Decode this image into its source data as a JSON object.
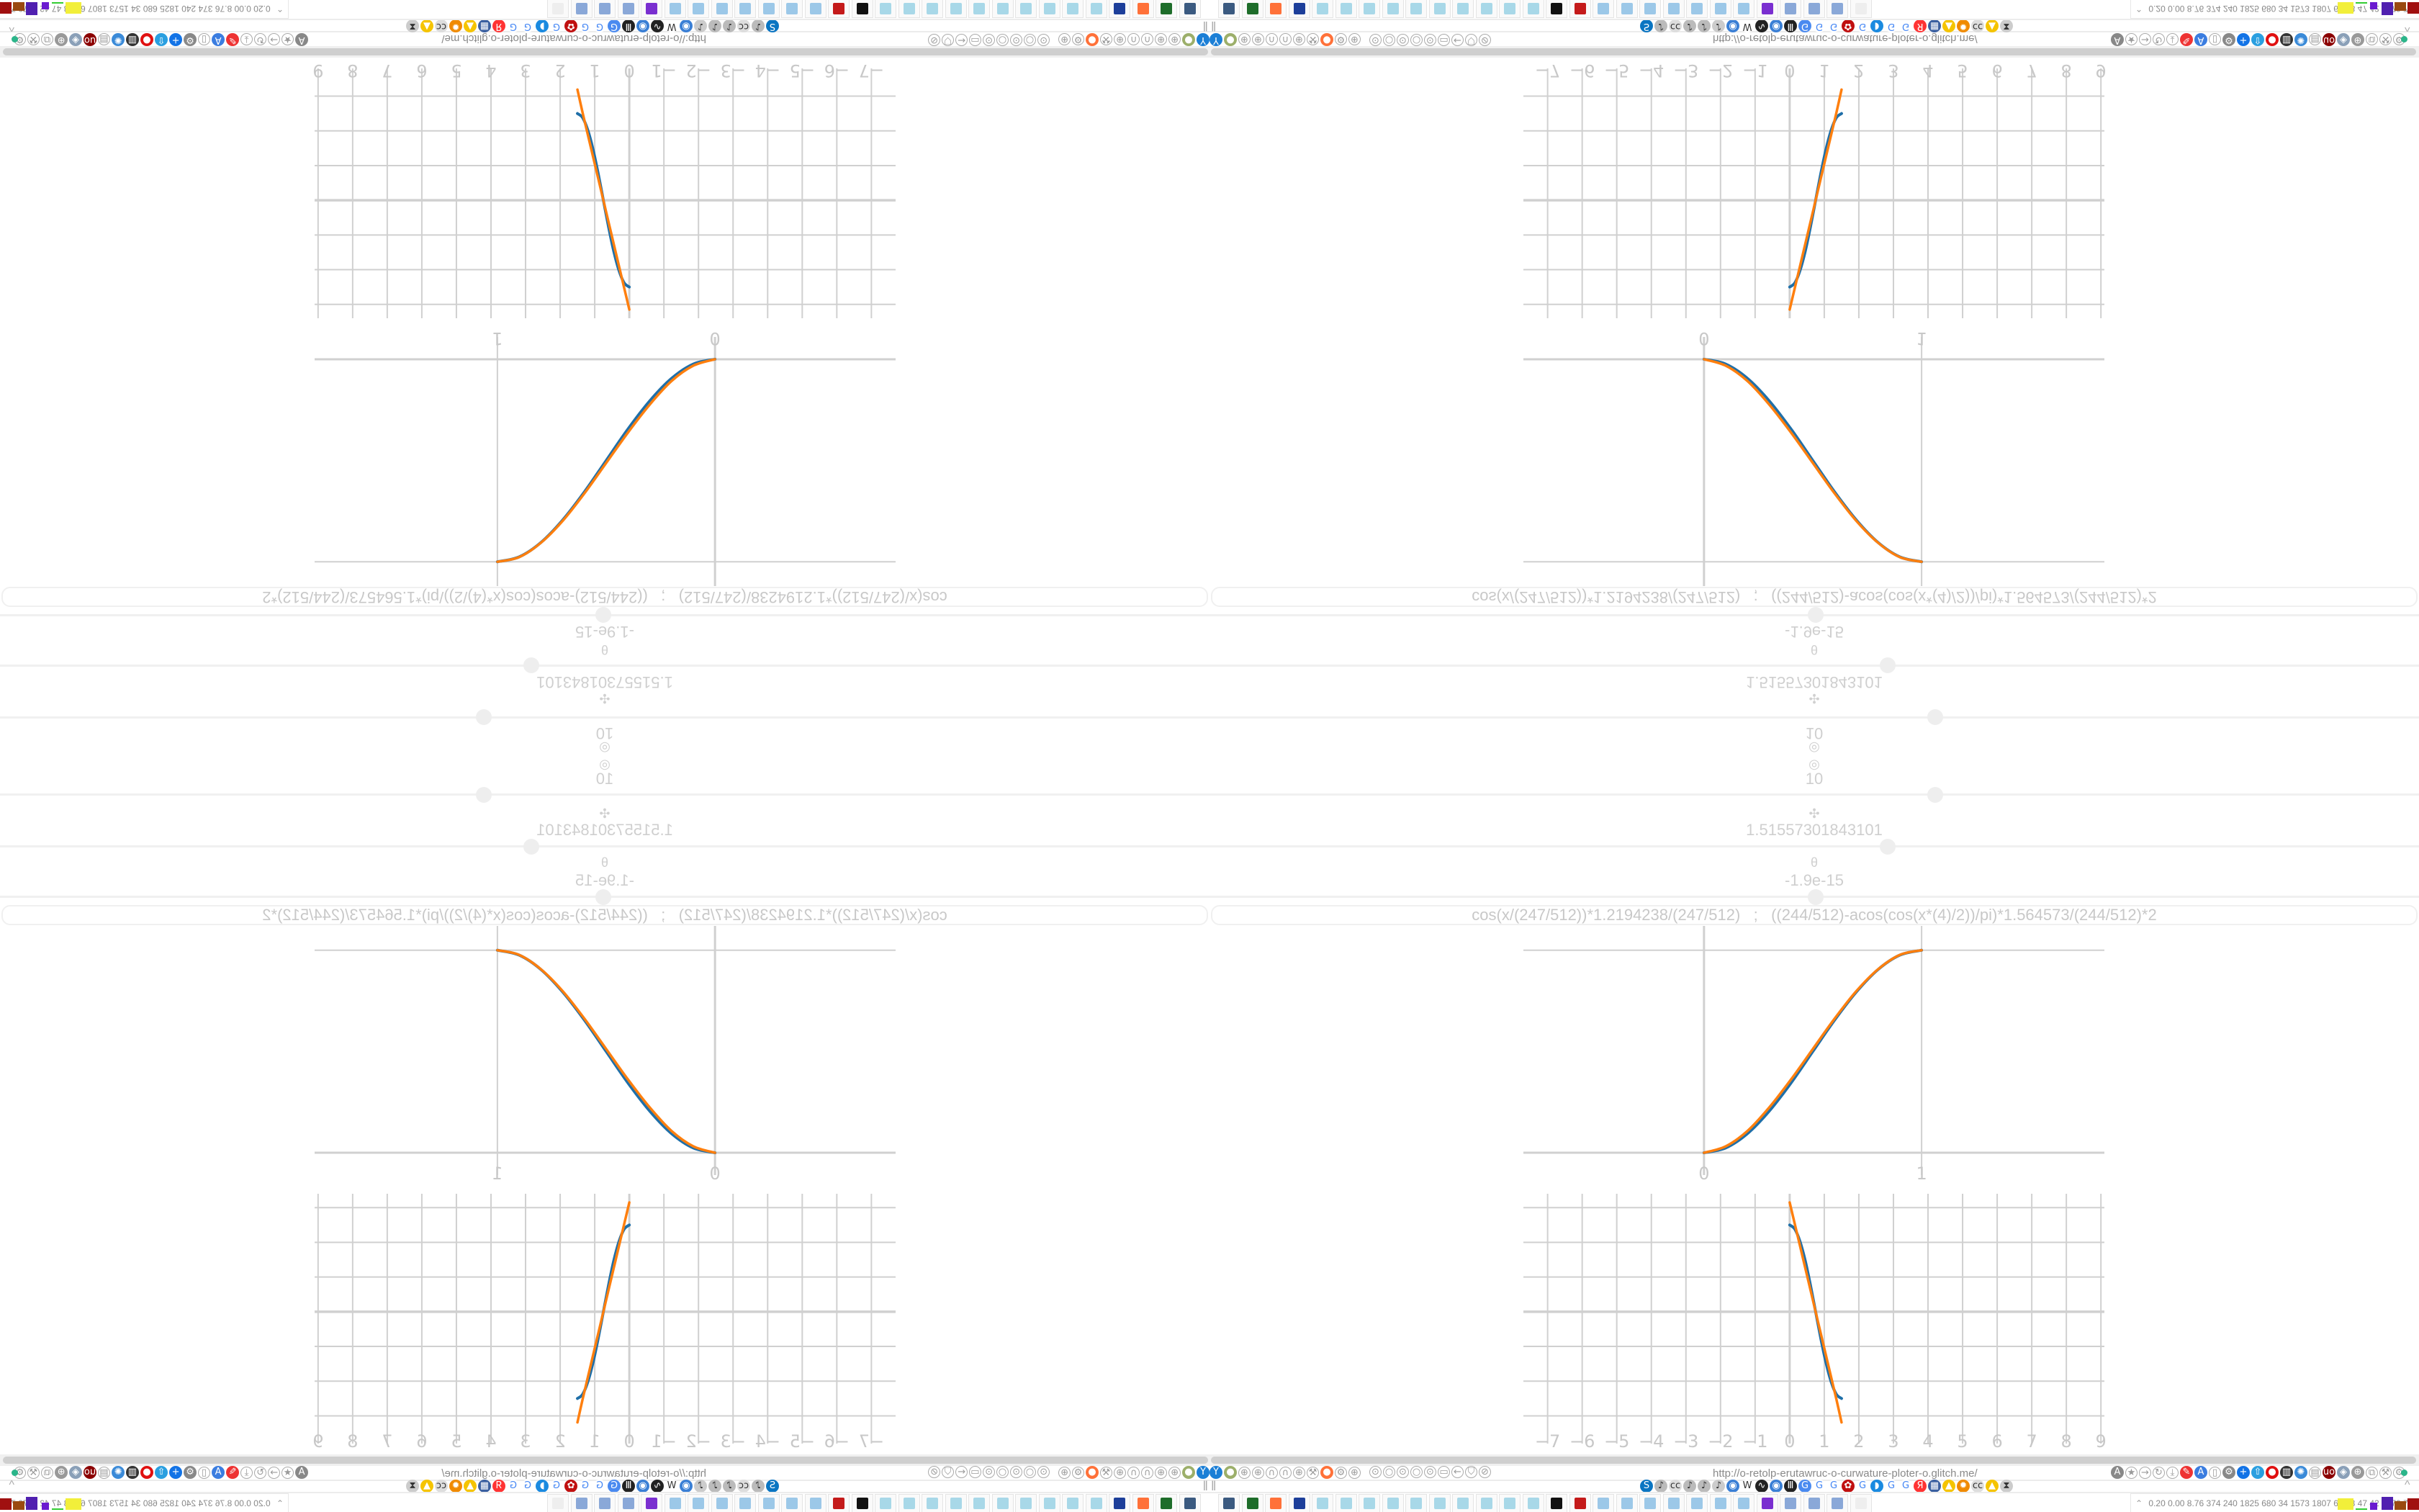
{
  "sliders": [
    {
      "icon": "target-icon",
      "glyph": "◎",
      "value": "10",
      "fraction": 0.6
    },
    {
      "icon": "move-icon",
      "glyph": "✣",
      "value": "1.51557301843101",
      "fraction": 0.56
    },
    {
      "icon": "theta-icon",
      "glyph": "θ",
      "value": "-1.9e-15",
      "fraction": 0.5
    }
  ],
  "formula": "cos(x/(247/512))*1.2194238/(247/512)   ;   ((244/512)-acos(cos(x*(4)/2))/pi)*1.564573/(244/512)*2",
  "colors": {
    "series1": "#1f6fa8",
    "series2": "#ff7f0e",
    "grid": "#d0d0d0",
    "text": "#c8c8c8"
  },
  "chart_data": [
    {
      "type": "line",
      "xlim": [
        -0.83,
        1.84
      ],
      "ylim": [
        -0.11,
        1.12
      ],
      "x_ticks": [
        "0",
        "1"
      ],
      "x_tick_values": [
        0,
        1
      ],
      "grid": true,
      "x": [
        0,
        0.1,
        0.2,
        0.3,
        0.4,
        0.5,
        0.6,
        0.7,
        0.8,
        0.9,
        1.0
      ],
      "series": [
        {
          "values": [
            0,
            0.024,
            0.095,
            0.206,
            0.345,
            0.5,
            0.655,
            0.794,
            0.905,
            0.976,
            1
          ]
        },
        {
          "values": [
            0,
            0.032,
            0.108,
            0.224,
            0.362,
            0.512,
            0.662,
            0.798,
            0.906,
            0.977,
            1
          ]
        }
      ]
    },
    {
      "type": "line",
      "xlim": [
        -7.7,
        9.1
      ],
      "ylim": [
        -3.8,
        3.4
      ],
      "x_ticks": [
        "−7",
        "−6",
        "−5",
        "−4",
        "−3",
        "−2",
        "−1",
        "0",
        "1",
        "2",
        "3",
        "4",
        "5",
        "6",
        "7",
        "8",
        "9"
      ],
      "x_tick_values": [
        -7,
        -6,
        -5,
        -4,
        -3,
        -2,
        -1,
        0,
        1,
        2,
        3,
        4,
        5,
        6,
        7,
        8,
        9
      ],
      "y_grid_values": [
        3,
        2,
        1,
        0,
        -1,
        -2,
        -3
      ],
      "grid": true,
      "x": [
        0,
        0.15,
        0.3,
        0.45,
        0.6,
        0.75,
        0.9,
        1.05,
        1.2,
        1.35,
        1.5
      ],
      "series": [
        {
          "values": [
            2.5,
            2.38,
            2.02,
            1.47,
            0.77,
            0,
            -0.77,
            -1.47,
            -2.02,
            -2.38,
            -2.5
          ]
        },
        {
          "values": [
            3.15,
            2.52,
            1.89,
            1.26,
            0.63,
            0,
            -0.63,
            -1.26,
            -1.89,
            -2.52,
            -3.19
          ]
        }
      ]
    }
  ],
  "browser": {
    "url": "http://o-retolp-erutawruc-o-curwature-ploter-o.glitch.me/",
    "toolbar_left": [
      {
        "name": "filter-icon",
        "c": "#1b7fd6",
        "g": "Y"
      },
      {
        "name": "addon-icon",
        "c": "#9caf6a",
        "g": "●"
      },
      {
        "name": "globe-icon",
        "c": "",
        "g": "⊕"
      },
      {
        "name": "globe-icon",
        "c": "",
        "g": "⊕"
      },
      {
        "name": "headphones-icon",
        "c": "",
        "g": "∩"
      },
      {
        "name": "headphones-icon",
        "c": "",
        "g": "∩"
      },
      {
        "name": "globe-icon",
        "c": "",
        "g": "⊕"
      },
      {
        "name": "wrench-icon",
        "c": "",
        "g": "⚒"
      },
      {
        "name": "firefox-icon",
        "c": "#ff7139",
        "g": "●"
      },
      {
        "name": "gear-icon",
        "c": "",
        "g": "⚙"
      },
      {
        "name": "globe-icon",
        "c": "",
        "g": "⊕"
      }
    ],
    "toolbar_mid": [
      {
        "name": "dot-icon",
        "g": "⊙"
      },
      {
        "name": "circle-icon",
        "g": "○"
      },
      {
        "name": "dot-icon",
        "g": "⊙"
      },
      {
        "name": "circle-icon",
        "g": "○"
      },
      {
        "name": "dot-icon",
        "g": "⊙"
      },
      {
        "name": "folder-icon",
        "g": "▭"
      },
      {
        "name": "back-arrow-icon",
        "g": "←"
      },
      {
        "name": "shield-icon",
        "g": "⛉"
      },
      {
        "name": "lock-crossed-icon",
        "g": "⊘"
      }
    ],
    "toolbar_right": [
      {
        "name": "translate-icon",
        "c": "#888",
        "g": "A"
      },
      {
        "name": "star-icon",
        "c": "",
        "g": "★"
      },
      {
        "name": "forward-icon",
        "c": "",
        "g": "→"
      },
      {
        "name": "reload-icon",
        "c": "",
        "g": "↻"
      },
      {
        "name": "download-icon",
        "c": "",
        "g": "⤓"
      },
      {
        "name": "pen-icon",
        "c": "#e33",
        "g": "✎"
      },
      {
        "name": "translate-icon",
        "c": "#3b7de0",
        "g": "A"
      },
      {
        "name": "mouse-icon",
        "c": "",
        "g": "▯"
      },
      {
        "name": "gear-icon",
        "c": "#888",
        "g": "⚙"
      },
      {
        "name": "plus-icon",
        "c": "#1273e6",
        "g": "+"
      },
      {
        "name": "upload-icon",
        "c": "#2a9fe0",
        "g": "⇧"
      },
      {
        "name": "record-icon",
        "c": "#e01010",
        "g": "●"
      },
      {
        "name": "trash-icon",
        "c": "#333",
        "g": "▥"
      },
      {
        "name": "network-icon",
        "c": "#3a8ad8",
        "g": "✺"
      },
      {
        "name": "box-icon",
        "c": "",
        "g": "▤"
      },
      {
        "name": "ublock-icon",
        "c": "#8b0000",
        "g": "uo"
      },
      {
        "name": "shield-icon",
        "c": "#8aa0b8",
        "g": "◈"
      },
      {
        "name": "globe-icon",
        "c": "#999",
        "g": "⊕"
      },
      {
        "name": "puzzle-icon",
        "c": "",
        "g": "⧉"
      },
      {
        "name": "wrench-icon",
        "c": "",
        "g": "⚒"
      },
      {
        "name": "gear-icon",
        "c": "",
        "g": "⚙"
      }
    ],
    "bookmarks": [
      {
        "name": "bookmark-shazam",
        "c": "#0a75c2",
        "g": "S"
      },
      {
        "name": "bookmark-mute",
        "c": "#bbb",
        "g": "♪"
      },
      {
        "name": "bookmark-cc",
        "c": "#ddd",
        "g": "cc"
      },
      {
        "name": "bookmark-mute",
        "c": "#bbb",
        "g": "♪"
      },
      {
        "name": "bookmark-mute",
        "c": "#bbb",
        "g": "♪"
      },
      {
        "name": "bookmark-mute-circle",
        "c": "#ccc",
        "g": "♪"
      },
      {
        "name": "bookmark-globe",
        "c": "#3a7fd5",
        "g": "◉"
      },
      {
        "name": "bookmark-wikipedia",
        "c": "#fff",
        "g": "W"
      },
      {
        "name": "bookmark-wave",
        "c": "#222",
        "g": "∿"
      },
      {
        "name": "bookmark-globe",
        "c": "#3a7fd5",
        "g": "◉"
      },
      {
        "name": "bookmark-museum",
        "c": "#222",
        "g": "Ⅲ"
      },
      {
        "name": "bookmark-translate",
        "c": "#4a8af0",
        "g": "G"
      },
      {
        "name": "bookmark-google",
        "c": "#fff",
        "g": "G"
      },
      {
        "name": "bookmark-google",
        "c": "#fff",
        "g": "G"
      },
      {
        "name": "bookmark-gear-red",
        "c": "#c01010",
        "g": "✿"
      },
      {
        "name": "bookmark-google",
        "c": "#fff",
        "g": "G"
      },
      {
        "name": "bookmark-edge",
        "c": "#1a8ae0",
        "g": "◗"
      },
      {
        "name": "bookmark-google",
        "c": "#fff",
        "g": "G"
      },
      {
        "name": "bookmark-google",
        "c": "#fff",
        "g": "G"
      },
      {
        "name": "bookmark-yandex",
        "c": "#f33",
        "g": "Я"
      },
      {
        "name": "bookmark-grid",
        "c": "#3a5fa0",
        "g": "▦"
      },
      {
        "name": "bookmark-image",
        "c": "#f5c400",
        "g": "▲"
      },
      {
        "name": "bookmark-sun",
        "c": "#f08a00",
        "g": "✹"
      },
      {
        "name": "bookmark-cc",
        "c": "#ddd",
        "g": "cc"
      },
      {
        "name": "bookmark-image",
        "c": "#f5c400",
        "g": "▲"
      },
      {
        "name": "bookmark-hourglass",
        "c": "#ccc",
        "g": "⧗"
      }
    ],
    "taskbar": [
      {
        "name": "taskbar-monitor",
        "c": "#3b5a80"
      },
      {
        "name": "taskbar-terminal",
        "c": "#1e6d2a"
      },
      {
        "name": "taskbar-firefox",
        "c": "#ff7139"
      },
      {
        "name": "taskbar-floppy",
        "c": "#1d3f9a"
      },
      {
        "name": "taskbar-notepad",
        "c": "#a8d8e8"
      },
      {
        "name": "taskbar-notepad",
        "c": "#a8d8e8"
      },
      {
        "name": "taskbar-notepad",
        "c": "#a8d8e8"
      },
      {
        "name": "taskbar-notepad",
        "c": "#a8d8e8"
      },
      {
        "name": "taskbar-notepad",
        "c": "#a8d8e8"
      },
      {
        "name": "taskbar-notepad",
        "c": "#a8d8e8"
      },
      {
        "name": "taskbar-notepad",
        "c": "#a8d8e8"
      },
      {
        "name": "taskbar-notepad",
        "c": "#a8d8e8"
      },
      {
        "name": "taskbar-notepad",
        "c": "#a8d8e8"
      },
      {
        "name": "taskbar-notepad",
        "c": "#a8d8e8"
      },
      {
        "name": "taskbar-inkscape",
        "c": "#111"
      },
      {
        "name": "taskbar-red-app",
        "c": "#c41a1a"
      },
      {
        "name": "taskbar-calculator",
        "c": "#9cc8e8"
      },
      {
        "name": "taskbar-calculator",
        "c": "#9cc8e8"
      },
      {
        "name": "taskbar-calculator",
        "c": "#9cc8e8"
      },
      {
        "name": "taskbar-calculator",
        "c": "#9cc8e8"
      },
      {
        "name": "taskbar-calculator",
        "c": "#9cc8e8"
      },
      {
        "name": "taskbar-calculator",
        "c": "#9cc8e8"
      },
      {
        "name": "taskbar-calculator",
        "c": "#9cc8e8"
      },
      {
        "name": "taskbar-purple-app",
        "c": "#7a2fd0"
      },
      {
        "name": "taskbar-scroll",
        "c": "#8aa8d8"
      },
      {
        "name": "taskbar-scroll",
        "c": "#8aa8d8"
      },
      {
        "name": "taskbar-scroll",
        "c": "#8aa8d8"
      },
      {
        "name": "taskbar-faded",
        "c": "#eee"
      }
    ],
    "tray_text": "0.20 0.00 8.76 374 240 1825 680  34  1573 1807  64   78   47   42  5770 7598",
    "tray_chevron": "⌃",
    "bookmarks_collapse": "^",
    "pause_glyph": "‖"
  }
}
